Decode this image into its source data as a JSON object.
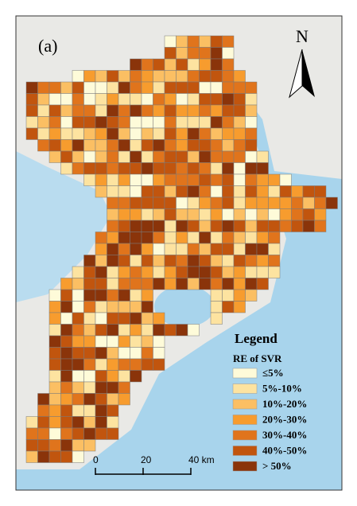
{
  "panel_label": "(a)",
  "north_label": "N",
  "legend": {
    "title": "Legend",
    "subtitle": "RE of SVR",
    "classes": [
      {
        "label": "≤5%",
        "color": "#fefbd9"
      },
      {
        "label": "5%-10%",
        "color": "#fde3a0"
      },
      {
        "label": "10%-20%",
        "color": "#fbbf63"
      },
      {
        "label": "20%-30%",
        "color": "#f79c2e"
      },
      {
        "label": "30%-40%",
        "color": "#e0741c"
      },
      {
        "label": "40%-50%",
        "color": "#c1550e"
      },
      {
        "label": "> 50%",
        "color": "#8a340a"
      }
    ]
  },
  "scale_bar": {
    "ticks": [
      0,
      20,
      {
        "value": 40,
        "label": "40 km"
      }
    ]
  }
}
